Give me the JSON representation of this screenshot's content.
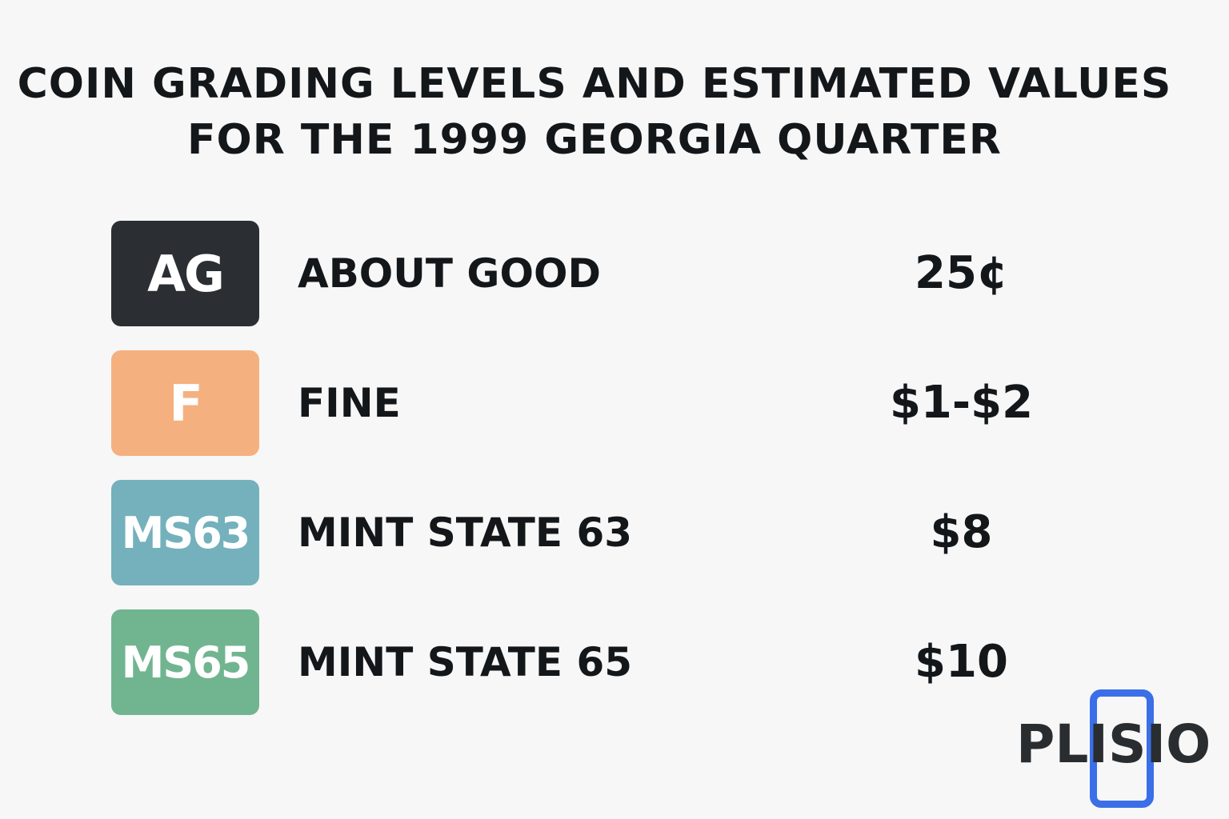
{
  "title": {
    "line1": "COIN GRADING LEVELS AND ESTIMATED VALUES",
    "line2": "FOR THE 1999 GEORGIA QUARTER"
  },
  "grades": [
    {
      "code": "AG",
      "name": "ABOUT GOOD",
      "value": "25¢",
      "color": "#2b2f33"
    },
    {
      "code": "F",
      "name": "FINE",
      "value": "$1-$2",
      "color": "#f5b07f"
    },
    {
      "code": "MS63",
      "name": "MINT STATE 63",
      "value": "$8",
      "color": "#74b1bc"
    },
    {
      "code": "MS65",
      "name": "MINT STATE 65",
      "value": "$10",
      "color": "#71b590"
    }
  ],
  "logo": {
    "text": "PLISIO",
    "accent_color": "#3a6fe8"
  }
}
